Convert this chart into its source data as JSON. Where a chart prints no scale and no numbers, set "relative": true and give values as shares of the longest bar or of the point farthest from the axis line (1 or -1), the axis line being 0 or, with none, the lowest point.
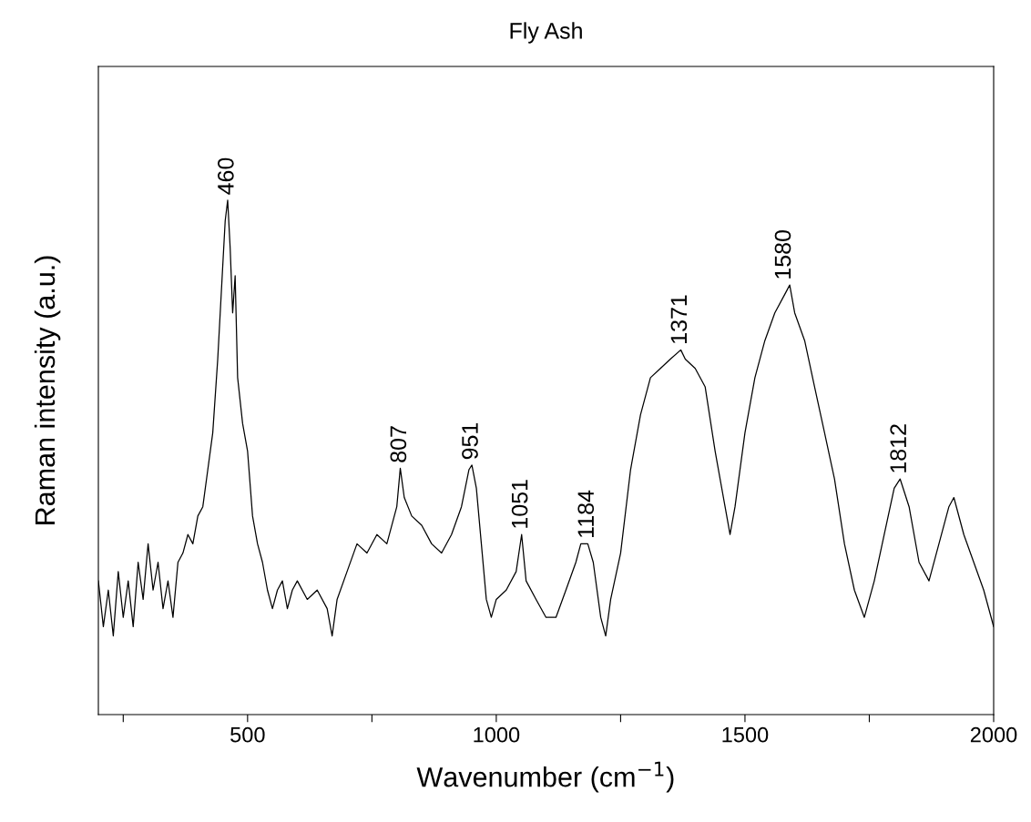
{
  "chart_data": {
    "type": "line",
    "title": "Fly Ash",
    "xlabel": "Wavenumber (cm$^{−1}$)",
    "ylabel": "Raman intensity (a.u.)",
    "relative": true,
    "xlim": [
      200,
      2000
    ],
    "xticks": [
      {
        "value": 250,
        "label": null
      },
      500,
      {
        "value": 750,
        "label": null
      },
      1000,
      {
        "value": 1250,
        "label": null
      },
      1500,
      {
        "value": 1750,
        "label": null
      },
      2000
    ],
    "grid": false,
    "legend": false,
    "marker": "none",
    "line_style": "solid",
    "series": [
      {
        "color": "#000000",
        "x": [
          200,
          210,
          220,
          230,
          240,
          250,
          260,
          270,
          280,
          290,
          300,
          310,
          320,
          330,
          340,
          350,
          360,
          370,
          380,
          390,
          400,
          410,
          420,
          430,
          440,
          450,
          455,
          460,
          465,
          470,
          475,
          480,
          490,
          500,
          510,
          520,
          530,
          540,
          550,
          560,
          570,
          580,
          590,
          600,
          620,
          640,
          660,
          670,
          680,
          700,
          720,
          740,
          760,
          780,
          800,
          807,
          815,
          830,
          850,
          870,
          890,
          910,
          930,
          945,
          951,
          960,
          970,
          980,
          990,
          1000,
          1020,
          1040,
          1051,
          1060,
          1080,
          1100,
          1120,
          1140,
          1160,
          1170,
          1184,
          1195,
          1210,
          1220,
          1230,
          1250,
          1270,
          1290,
          1310,
          1330,
          1350,
          1371,
          1380,
          1400,
          1420,
          1440,
          1460,
          1470,
          1480,
          1500,
          1520,
          1540,
          1560,
          1580,
          1590,
          1600,
          1620,
          1640,
          1660,
          1680,
          1700,
          1720,
          1740,
          1760,
          1780,
          1800,
          1812,
          1830,
          1850,
          1870,
          1890,
          1910,
          1920,
          1940,
          1960,
          1980,
          2000
        ],
        "values": [
          0.26,
          0.171,
          0.242,
          0.153,
          0.278,
          0.189,
          0.26,
          0.171,
          0.296,
          0.224,
          0.332,
          0.242,
          0.296,
          0.206,
          0.26,
          0.189,
          0.296,
          0.314,
          0.35,
          0.332,
          0.386,
          0.404,
          0.476,
          0.548,
          0.691,
          0.871,
          0.96,
          1.0,
          0.907,
          0.781,
          0.853,
          0.655,
          0.566,
          0.512,
          0.386,
          0.332,
          0.296,
          0.242,
          0.206,
          0.242,
          0.26,
          0.206,
          0.242,
          0.26,
          0.224,
          0.242,
          0.206,
          0.153,
          0.224,
          0.278,
          0.332,
          0.314,
          0.35,
          0.332,
          0.404,
          0.479,
          0.422,
          0.386,
          0.368,
          0.332,
          0.314,
          0.35,
          0.404,
          0.476,
          0.485,
          0.44,
          0.332,
          0.224,
          0.189,
          0.224,
          0.242,
          0.278,
          0.35,
          0.26,
          0.224,
          0.189,
          0.189,
          0.242,
          0.296,
          0.332,
          0.332,
          0.296,
          0.189,
          0.153,
          0.224,
          0.314,
          0.476,
          0.583,
          0.655,
          0.673,
          0.691,
          0.709,
          0.691,
          0.673,
          0.637,
          0.512,
          0.404,
          0.35,
          0.404,
          0.548,
          0.655,
          0.727,
          0.781,
          0.817,
          0.835,
          0.781,
          0.727,
          0.637,
          0.548,
          0.458,
          0.332,
          0.242,
          0.189,
          0.26,
          0.35,
          0.44,
          0.458,
          0.404,
          0.296,
          0.26,
          0.332,
          0.404,
          0.422,
          0.35,
          0.296,
          0.242,
          0.171
        ]
      }
    ],
    "annotations": [
      {
        "text": "460",
        "x": 460,
        "y": 1.0
      },
      {
        "text": "807",
        "x": 807,
        "y": 0.479
      },
      {
        "text": "951",
        "x": 951,
        "y": 0.485
      },
      {
        "text": "1051",
        "x": 1051,
        "y": 0.35
      },
      {
        "text": "1184",
        "x": 1184,
        "y": 0.332
      },
      {
        "text": "1371",
        "x": 1371,
        "y": 0.709
      },
      {
        "text": "1580",
        "x": 1580,
        "y": 0.835
      },
      {
        "text": "1812",
        "x": 1812,
        "y": 0.458
      }
    ]
  }
}
